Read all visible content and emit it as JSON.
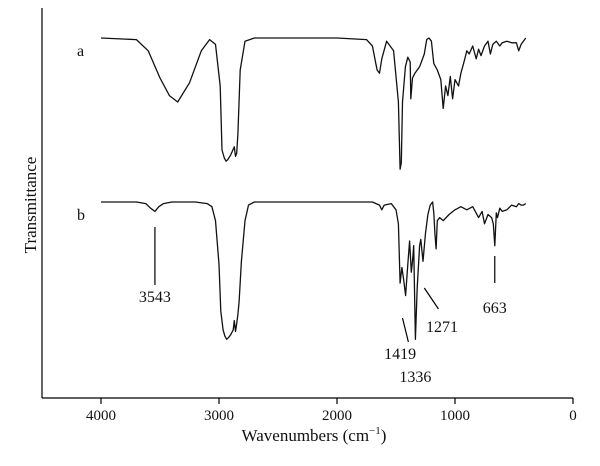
{
  "chart_data": {
    "type": "line",
    "xlabel_main": "Wavenumbers (cm",
    "xlabel_sup": "−1",
    "xlabel_close": ")",
    "ylabel": "Transmittance",
    "xlim": [
      4500,
      0
    ],
    "xticks": [
      4000,
      3000,
      2000,
      1000,
      0
    ],
    "grid": false,
    "series": [
      {
        "name": "a",
        "x": [
          4000,
          3700,
          3600,
          3500,
          3420,
          3350,
          3250,
          3150,
          3080,
          3030,
          2990,
          2975,
          2955,
          2940,
          2925,
          2900,
          2870,
          2860,
          2850,
          2840,
          2820,
          2780,
          2700,
          2600,
          2000,
          1750,
          1700,
          1660,
          1640,
          1620,
          1580,
          1520,
          1480,
          1465,
          1455,
          1445,
          1420,
          1400,
          1380,
          1375,
          1360,
          1340,
          1300,
          1260,
          1240,
          1220,
          1200,
          1180,
          1150,
          1120,
          1100,
          1080,
          1060,
          1040,
          1020,
          1000,
          970,
          950,
          920,
          900,
          880,
          850,
          820,
          800,
          780,
          750,
          720,
          700,
          680,
          650,
          620,
          600,
          560,
          520,
          480,
          460,
          440,
          420,
          400
        ],
        "y": [
          100,
          99,
          92,
          75,
          64,
          60,
          72,
          92,
          99,
          96,
          70,
          30,
          25,
          23,
          24,
          27,
          32,
          26,
          28,
          40,
          80,
          98,
          100,
          100,
          100,
          99,
          95,
          80,
          78,
          87,
          98,
          92,
          60,
          18,
          22,
          60,
          82,
          88,
          85,
          62,
          75,
          78,
          82,
          90,
          99,
          100,
          98,
          84,
          80,
          74,
          56,
          70,
          64,
          76,
          62,
          74,
          70,
          78,
          86,
          92,
          90,
          95,
          87,
          93,
          89,
          95,
          98,
          90,
          96,
          98,
          95,
          97,
          98,
          97,
          97,
          92,
          96,
          98,
          100
        ]
      },
      {
        "name": "b",
        "x": [
          4000,
          3700,
          3620,
          3580,
          3543,
          3510,
          3470,
          3400,
          3200,
          3100,
          3060,
          3030,
          3000,
          2985,
          2965,
          2950,
          2935,
          2920,
          2900,
          2880,
          2870,
          2860,
          2850,
          2840,
          2830,
          2810,
          2780,
          2750,
          2700,
          2000,
          1700,
          1640,
          1620,
          1600,
          1540,
          1500,
          1480,
          1465,
          1450,
          1435,
          1419,
          1400,
          1385,
          1370,
          1360,
          1350,
          1336,
          1320,
          1300,
          1290,
          1271,
          1250,
          1230,
          1210,
          1190,
          1180,
          1170,
          1160,
          1150,
          1130,
          1100,
          1050,
          1000,
          950,
          900,
          850,
          800,
          770,
          750,
          720,
          690,
          675,
          663,
          650,
          640,
          620,
          600,
          560,
          520,
          480,
          460,
          440,
          420,
          400
        ],
        "y": [
          100,
          100,
          99,
          96,
          94,
          97,
          99,
          100,
          100,
          99,
          97,
          88,
          60,
          30,
          18,
          14,
          12,
          13,
          15,
          18,
          24,
          17,
          22,
          28,
          36,
          62,
          88,
          98,
          100,
          100,
          100,
          98,
          95,
          98,
          99,
          95,
          86,
          48,
          58,
          50,
          40,
          60,
          75,
          55,
          62,
          72,
          12,
          45,
          72,
          76,
          62,
          80,
          92,
          98,
          100,
          93,
          80,
          70,
          88,
          90,
          88,
          92,
          95,
          97,
          95,
          97,
          90,
          94,
          86,
          92,
          90,
          86,
          72,
          93,
          90,
          96,
          94,
          95,
          98,
          97,
          99,
          98,
          98,
          99
        ]
      }
    ],
    "annotations": [
      {
        "text": "3543",
        "x": 3543,
        "series": "b"
      },
      {
        "text": "1419",
        "x": 1419,
        "series": "b"
      },
      {
        "text": "1336",
        "x": 1336,
        "series": "b"
      },
      {
        "text": "1271",
        "x": 1271,
        "series": "b"
      },
      {
        "text": "663",
        "x": 663,
        "series": "b"
      }
    ]
  }
}
